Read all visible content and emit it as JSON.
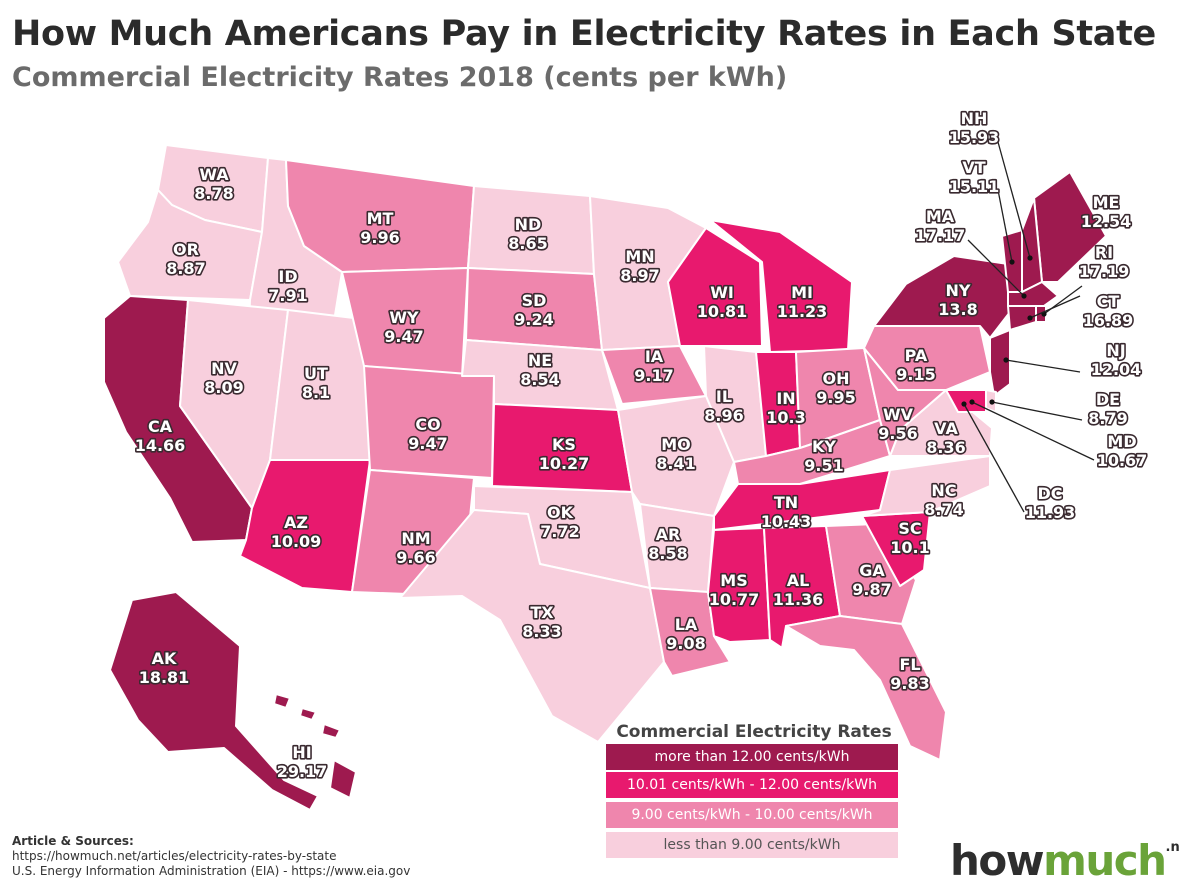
{
  "title": "How Much Americans Pay in Electricity Rates in Each State",
  "subtitle": "Commercial Electricity Rates 2018 (cents per kWh)",
  "colors": {
    "tier1": "#9e1a4f",
    "tier2": "#e8196e",
    "tier3": "#ef86ad",
    "tier4": "#f8cfdd"
  },
  "legend": {
    "title": "Commercial Electricity Rates",
    "items": [
      {
        "label": "more than 12.00 cents/kWh",
        "color": "#9e1a4f"
      },
      {
        "label": "10.01 cents/kWh - 12.00 cents/kWh",
        "color": "#e8196e"
      },
      {
        "label": "9.00 cents/kWh - 10.00 cents/kWh",
        "color": "#ef86ad"
      },
      {
        "label": "less than 9.00 cents/kWh",
        "color": "#f8cfdd"
      }
    ]
  },
  "states": [
    {
      "abbr": "WA",
      "rate": "8.78"
    },
    {
      "abbr": "OR",
      "rate": "8.87"
    },
    {
      "abbr": "CA",
      "rate": "14.66"
    },
    {
      "abbr": "ID",
      "rate": "7.91"
    },
    {
      "abbr": "NV",
      "rate": "8.09"
    },
    {
      "abbr": "UT",
      "rate": "8.1"
    },
    {
      "abbr": "AZ",
      "rate": "10.09"
    },
    {
      "abbr": "MT",
      "rate": "9.96"
    },
    {
      "abbr": "WY",
      "rate": "9.47"
    },
    {
      "abbr": "CO",
      "rate": "9.47"
    },
    {
      "abbr": "NM",
      "rate": "9.66"
    },
    {
      "abbr": "ND",
      "rate": "8.65"
    },
    {
      "abbr": "SD",
      "rate": "9.24"
    },
    {
      "abbr": "NE",
      "rate": "8.54"
    },
    {
      "abbr": "KS",
      "rate": "10.27"
    },
    {
      "abbr": "OK",
      "rate": "7.72"
    },
    {
      "abbr": "TX",
      "rate": "8.33"
    },
    {
      "abbr": "MN",
      "rate": "8.97"
    },
    {
      "abbr": "IA",
      "rate": "9.17"
    },
    {
      "abbr": "MO",
      "rate": "8.41"
    },
    {
      "abbr": "AR",
      "rate": "8.58"
    },
    {
      "abbr": "LA",
      "rate": "9.08"
    },
    {
      "abbr": "WI",
      "rate": "10.81"
    },
    {
      "abbr": "IL",
      "rate": "8.96"
    },
    {
      "abbr": "MI",
      "rate": "11.23"
    },
    {
      "abbr": "IN",
      "rate": "10.3"
    },
    {
      "abbr": "OH",
      "rate": "9.95"
    },
    {
      "abbr": "KY",
      "rate": "9.51"
    },
    {
      "abbr": "TN",
      "rate": "10.43"
    },
    {
      "abbr": "MS",
      "rate": "10.77"
    },
    {
      "abbr": "AL",
      "rate": "11.36"
    },
    {
      "abbr": "GA",
      "rate": "9.87"
    },
    {
      "abbr": "FL",
      "rate": "9.83"
    },
    {
      "abbr": "SC",
      "rate": "10.1"
    },
    {
      "abbr": "NC",
      "rate": "8.74"
    },
    {
      "abbr": "VA",
      "rate": "8.36"
    },
    {
      "abbr": "WV",
      "rate": "9.56"
    },
    {
      "abbr": "PA",
      "rate": "9.15"
    },
    {
      "abbr": "NY",
      "rate": "13.8"
    },
    {
      "abbr": "ME",
      "rate": "12.54"
    },
    {
      "abbr": "NH",
      "rate": "15.93"
    },
    {
      "abbr": "VT",
      "rate": "15.11"
    },
    {
      "abbr": "MA",
      "rate": "17.17"
    },
    {
      "abbr": "RI",
      "rate": "17.19"
    },
    {
      "abbr": "CT",
      "rate": "16.89"
    },
    {
      "abbr": "NJ",
      "rate": "12.04"
    },
    {
      "abbr": "DE",
      "rate": "8.79"
    },
    {
      "abbr": "MD",
      "rate": "10.67"
    },
    {
      "abbr": "DC",
      "rate": "11.93"
    },
    {
      "abbr": "AK",
      "rate": "18.81"
    },
    {
      "abbr": "HI",
      "rate": "29.17"
    }
  ],
  "sources": {
    "heading": "Article & Sources:",
    "line1": "https://howmuch.net/articles/electricity-rates-by-state",
    "line2": "U.S. Energy Information Administration (EIA) - https://www.eia.gov"
  },
  "logo": {
    "part1": "how",
    "part2": "much",
    "suffix": ".net"
  }
}
